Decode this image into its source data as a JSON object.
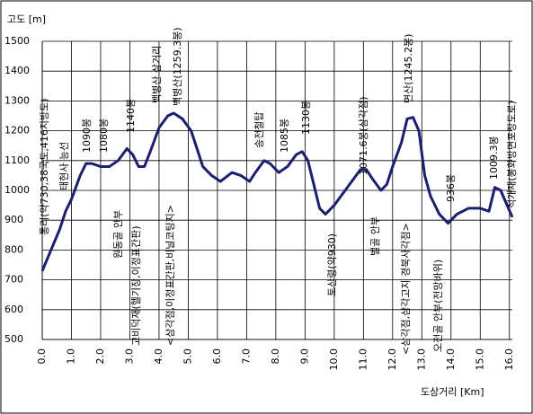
{
  "chart_data": {
    "type": "line",
    "y_label": "고도 [m]",
    "x_label": "도상거리 [Km]",
    "x": [
      0,
      0.3,
      0.6,
      0.8,
      1.0,
      1.3,
      1.5,
      1.7,
      2.0,
      2.3,
      2.6,
      2.9,
      3.1,
      3.3,
      3.5,
      3.7,
      4.0,
      4.3,
      4.5,
      4.8,
      5.1,
      5.3,
      5.5,
      5.8,
      6.1,
      6.5,
      6.8,
      7.1,
      7.3,
      7.6,
      7.8,
      8.1,
      8.4,
      8.7,
      8.9,
      9.1,
      9.3,
      9.5,
      9.7,
      10.0,
      10.3,
      10.6,
      10.9,
      11.1,
      11.3,
      11.6,
      11.8,
      12.0,
      12.3,
      12.5,
      12.7,
      12.9,
      13.1,
      13.3,
      13.6,
      13.9,
      14.2,
      14.6,
      15.0,
      15.3,
      15.5,
      15.7,
      16.1
    ],
    "series": [
      {
        "color": "#1c1f6e",
        "values": [
          730,
          800,
          870,
          930,
          970,
          1050,
          1090,
          1090,
          1080,
          1080,
          1100,
          1140,
          1120,
          1080,
          1080,
          1130,
          1210,
          1250,
          1259,
          1240,
          1200,
          1140,
          1080,
          1050,
          1030,
          1060,
          1050,
          1030,
          1060,
          1100,
          1090,
          1060,
          1080,
          1120,
          1130,
          1100,
          1020,
          940,
          920,
          950,
          990,
          1030,
          1070,
          1070,
          1040,
          1000,
          1020,
          1080,
          1160,
          1240,
          1245,
          1200,
          1050,
          980,
          920,
          890,
          920,
          940,
          940,
          930,
          1010,
          1000,
          910
        ]
      }
    ],
    "xlim": [
      0,
      16.1
    ],
    "ylim": [
      500,
      1500
    ],
    "xticks": [
      {
        "value": 0,
        "label": "0.0"
      },
      {
        "value": 1,
        "label": "1.0"
      },
      {
        "value": 2,
        "label": "2.0"
      },
      {
        "value": 3,
        "label": "3.0"
      },
      {
        "value": 4,
        "label": "4.0"
      },
      {
        "value": 5,
        "label": "5.0"
      },
      {
        "value": 6,
        "label": "6.0"
      },
      {
        "value": 7,
        "label": "7.0"
      },
      {
        "value": 8,
        "label": "8.0"
      },
      {
        "value": 9,
        "label": "9.0"
      },
      {
        "value": 10,
        "label": "10.0"
      },
      {
        "value": 11,
        "label": "11.0"
      },
      {
        "value": 12,
        "label": "12.0"
      },
      {
        "value": 13,
        "label": "13.0"
      },
      {
        "value": 14,
        "label": "14.0"
      },
      {
        "value": 15,
        "label": "15.0"
      },
      {
        "value": 16,
        "label": "16.0"
      }
    ],
    "yticks": [
      500,
      600,
      700,
      800,
      900,
      1000,
      1100,
      1200,
      1300,
      1400,
      1500
    ],
    "grid": true,
    "annotations": [
      "통리(약730,38국도,416지방도)",
      "태현사 능선",
      "1090봉",
      "1080봉",
      "1140봉",
      "원동골 안부",
      "고비덕재(헬기장,이정표간판)",
      "백병산 삼거리",
      "백병산(1259.3봉)",
      "<삼각점,이정표간판,비닐코팅지>",
      "송전철탑",
      "1085봉",
      "1130봉",
      "토산령(약930)",
      "1071.6봉(삼각점)",
      "벌골 안부",
      "면산(1245.2봉)",
      "<삼각점,삼각고지 경북사각점>",
      "오전골 안부(전망바위)",
      "936봉",
      "1009.3봉",
      "석개재(봉화방면포장도로)"
    ]
  }
}
